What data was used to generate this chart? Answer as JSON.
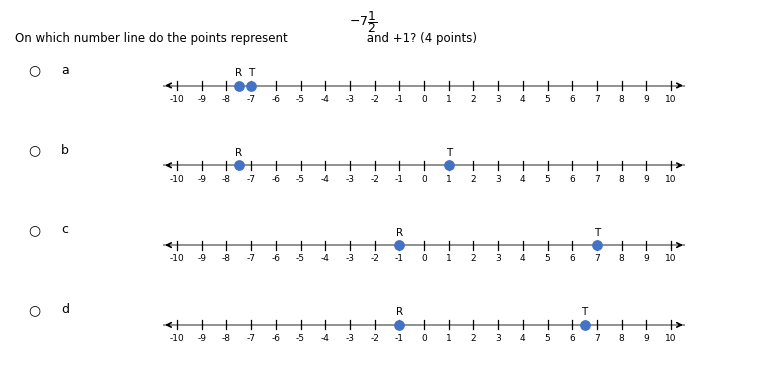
{
  "question": "On which number line do the points represent",
  "question_suffix": " and +1? (4 points)",
  "number_lines": [
    {
      "label": "a",
      "points": [
        {
          "name": "R",
          "x": -7.5
        },
        {
          "name": "T",
          "x": -7.0
        }
      ]
    },
    {
      "label": "b",
      "points": [
        {
          "name": "R",
          "x": -7.5
        },
        {
          "name": "T",
          "x": 1.0
        }
      ]
    },
    {
      "label": "c",
      "points": [
        {
          "name": "R",
          "x": -1.0
        },
        {
          "name": "T",
          "x": 7.0
        }
      ]
    },
    {
      "label": "d",
      "points": [
        {
          "name": "R",
          "x": -1.0
        },
        {
          "name": "T",
          "x": 6.5
        }
      ]
    }
  ],
  "x_min": -10,
  "x_max": 10,
  "tick_labels": [
    -10,
    -9,
    -8,
    -7,
    -6,
    -5,
    -4,
    -3,
    -2,
    -1,
    0,
    1,
    2,
    3,
    4,
    5,
    6,
    7,
    8,
    9,
    10
  ],
  "dot_color": "#4472C4",
  "line_color": "#888888",
  "arrow_color": "#000000",
  "background_color": "#ffffff",
  "font_size_ticks": 6.5,
  "font_size_point_labels": 7.5,
  "font_size_question": 8.5,
  "font_size_option": 9
}
